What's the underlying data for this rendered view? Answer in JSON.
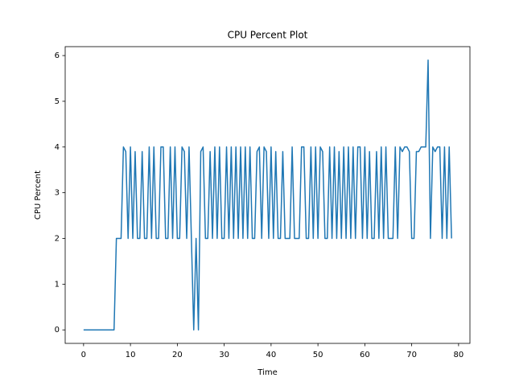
{
  "chart_data": {
    "type": "line",
    "title": "CPU Percent Plot",
    "x_label": "Time",
    "y_label": "CPU Percent",
    "color": "#1f77b4",
    "x": [
      0,
      0.5,
      1,
      1.5,
      2,
      2.5,
      3,
      3.5,
      4,
      4.5,
      5,
      5.5,
      6,
      6.5,
      7,
      7.5,
      8,
      8.5,
      9,
      9.5,
      10,
      10.5,
      11,
      11.5,
      12,
      12.5,
      13,
      13.5,
      14,
      14.5,
      15,
      15.5,
      16,
      16.5,
      17,
      17.5,
      18,
      18.5,
      19,
      19.5,
      20,
      20.5,
      21,
      21.5,
      22,
      22.5,
      23,
      23.5,
      24,
      24.5,
      25,
      25.5,
      26,
      26.5,
      27,
      27.5,
      28,
      28.5,
      29,
      29.5,
      30,
      30.5,
      31,
      31.5,
      32,
      32.5,
      33,
      33.5,
      34,
      34.5,
      35,
      35.5,
      36,
      36.5,
      37,
      37.5,
      38,
      38.5,
      39,
      39.5,
      40,
      40.5,
      41,
      41.5,
      42,
      42.5,
      43,
      43.5,
      44,
      44.5,
      45,
      45.5,
      46,
      46.5,
      47,
      47.5,
      48,
      48.5,
      49,
      49.5,
      50,
      50.5,
      51,
      51.5,
      52,
      52.5,
      53,
      53.5,
      54,
      54.5,
      55,
      55.5,
      56,
      56.5,
      57,
      57.5,
      58,
      58.5,
      59,
      59.5,
      60,
      60.5,
      61,
      61.5,
      62,
      62.5,
      63,
      63.5,
      64,
      64.5,
      65,
      65.5,
      66,
      66.5,
      67,
      67.5,
      68,
      68.5,
      69,
      69.5,
      70,
      70.5,
      71,
      71.5,
      72,
      72.5,
      73,
      73.5,
      74,
      74.5,
      75,
      75.5,
      76,
      76.5,
      77,
      77.5,
      78,
      78.5
    ],
    "values": [
      0,
      0,
      0,
      0,
      0,
      0,
      0,
      0,
      0,
      0,
      0,
      0,
      0,
      0,
      2,
      2,
      2,
      4,
      3.9,
      2,
      4,
      2,
      3.9,
      2,
      2,
      3.9,
      2,
      2,
      4,
      2,
      4,
      2,
      2,
      4,
      4,
      2,
      2,
      4,
      2,
      4,
      2,
      2,
      4,
      3.9,
      2,
      4,
      2,
      0,
      2,
      0,
      3.9,
      4,
      2,
      2,
      3.9,
      2,
      4,
      2,
      4,
      2,
      2,
      4,
      2,
      4,
      2,
      4,
      2,
      4,
      2,
      4,
      2,
      4,
      2,
      2,
      3.9,
      4,
      2,
      4,
      3.9,
      2,
      4,
      2,
      3.9,
      2,
      2,
      3.9,
      2,
      2,
      2,
      4,
      2,
      2,
      2,
      4,
      4,
      2,
      2,
      4,
      2,
      4,
      2,
      4,
      3.9,
      2,
      2,
      4,
      2,
      4,
      2,
      3.9,
      2,
      4,
      2,
      4,
      2,
      4,
      2,
      4,
      4,
      2,
      4,
      2,
      3.9,
      2,
      2,
      3.9,
      2,
      4,
      2,
      4,
      2,
      2,
      2,
      4,
      2,
      4,
      3.9,
      4,
      4,
      3.9,
      2,
      2,
      3.9,
      3.9,
      4,
      4,
      4,
      5.9,
      2,
      4,
      3.9,
      4,
      4,
      2,
      4,
      2,
      4,
      2
    ],
    "xlim": [
      -3.925,
      82.425
    ],
    "xticks": [
      0,
      10,
      20,
      30,
      40,
      50,
      60,
      70,
      80
    ],
    "ylim": [
      -0.295,
      6.195
    ],
    "yticks": [
      0,
      1,
      2,
      3,
      4,
      5,
      6
    ]
  }
}
